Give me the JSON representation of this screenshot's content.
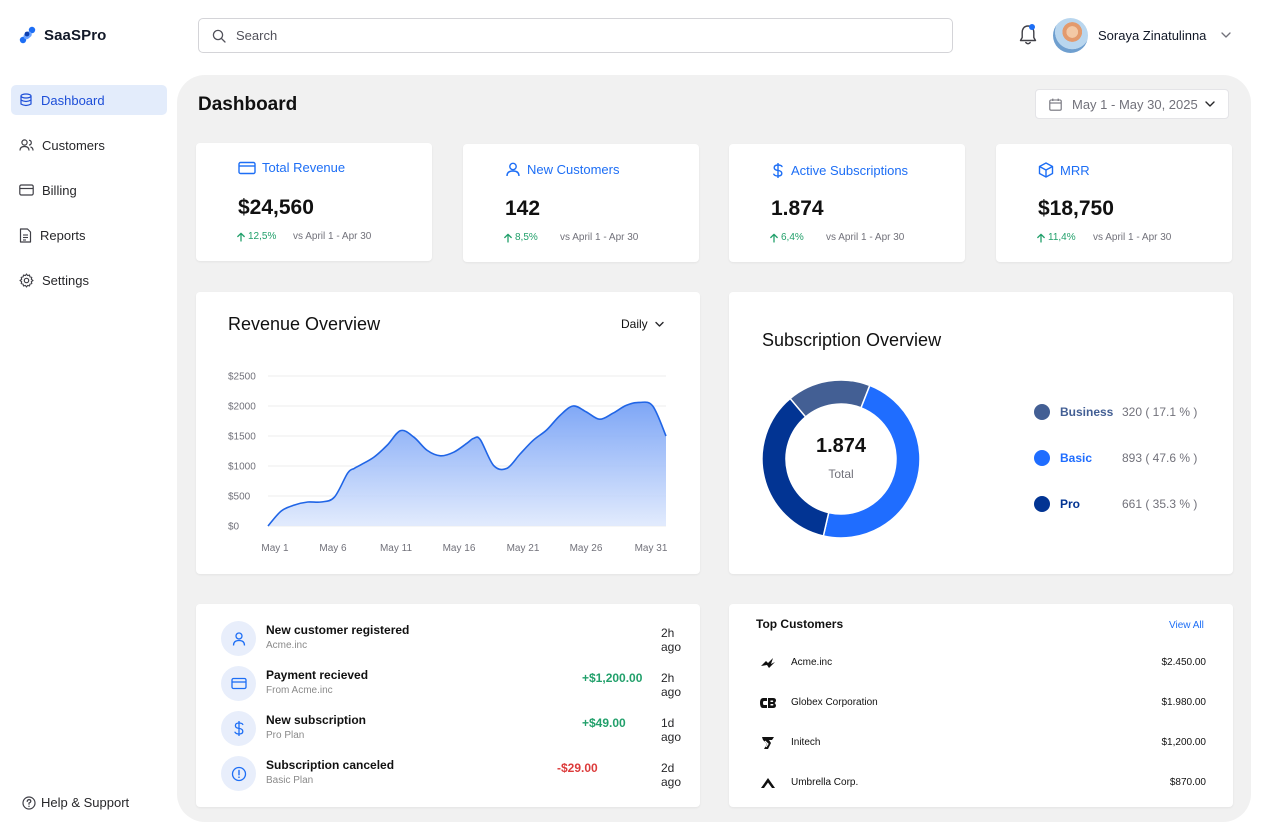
{
  "app": {
    "name": "SaaSPro"
  },
  "search": {
    "placeholder": "Search"
  },
  "user": {
    "name": "Soraya Zinatulinna"
  },
  "sidebar": {
    "items": [
      {
        "label": "Dashboard",
        "icon": "database-icon",
        "active": true
      },
      {
        "label": "Customers",
        "icon": "users-icon",
        "active": false
      },
      {
        "label": "Billing",
        "icon": "credit-card-icon",
        "active": false
      },
      {
        "label": "Reports",
        "icon": "document-icon",
        "active": false
      },
      {
        "label": "Settings",
        "icon": "gear-icon",
        "active": false
      }
    ],
    "help_label": "Help & Support"
  },
  "header": {
    "title": "Dashboard",
    "date_range": "May 1 - May 30, 2025"
  },
  "stats": [
    {
      "label": "Total Revenue",
      "value": "$24,560",
      "change": "12,5%",
      "compare": "vs April 1 - Apr 30",
      "icon": "credit-card-icon"
    },
    {
      "label": "New Customers",
      "value": "142",
      "change": "8,5%",
      "compare": "vs April 1 - Apr 30",
      "icon": "user-icon"
    },
    {
      "label": "Active Subscriptions",
      "value": "1.874",
      "change": "6,4%",
      "compare": "vs April 1 - Apr 30",
      "icon": "dollar-icon"
    },
    {
      "label": "MRR",
      "value": "$18,750",
      "change": "11,4%",
      "compare": "vs April 1 - Apr 30",
      "icon": "box-icon"
    }
  ],
  "revenue": {
    "title": "Revenue Overview",
    "interval": "Daily"
  },
  "subscription": {
    "title": "Subscription Overview",
    "total_value": "1.874",
    "total_label": "Total",
    "legend": [
      {
        "name": "Business",
        "value": "320 ( 17.1 % )",
        "color": "#435f94"
      },
      {
        "name": "Basic",
        "value": "893 ( 47.6 % )",
        "color": "#1f6dff"
      },
      {
        "name": "Pro",
        "value": "661 ( 35.3 % )",
        "color": "#023493"
      }
    ]
  },
  "chart_data": [
    {
      "type": "area",
      "title": "Revenue Overview",
      "x_ticks": [
        "May 1",
        "May 6",
        "May 11",
        "May 16",
        "May 21",
        "May 26",
        "May 31"
      ],
      "y_ticks": [
        "$0",
        "$500",
        "$1000",
        "$1500",
        "$2000",
        "$2500"
      ],
      "ylim": [
        0,
        2500
      ],
      "grid": true,
      "series": [
        {
          "x": [
            1,
            2,
            3,
            4,
            5,
            6,
            7,
            7.5,
            8,
            9,
            10,
            11,
            12,
            13,
            14,
            15,
            16,
            16.5,
            17,
            18,
            19,
            20,
            21,
            22,
            23,
            24,
            25,
            26,
            27,
            28,
            29,
            30,
            31
          ],
          "values": [
            0,
            250,
            350,
            400,
            400,
            480,
            880,
            960,
            1020,
            1150,
            1350,
            1590,
            1480,
            1260,
            1170,
            1230,
            1380,
            1460,
            1440,
            1010,
            960,
            1200,
            1430,
            1600,
            1840,
            2000,
            1900,
            1780,
            1880,
            2010,
            2060,
            2000,
            1500
          ]
        }
      ]
    },
    {
      "type": "pie",
      "title": "Subscription Overview",
      "categories": [
        "Business",
        "Basic",
        "Pro"
      ],
      "values": [
        320,
        893,
        661
      ],
      "colors": [
        "#435f94",
        "#1f6dff",
        "#023493"
      ]
    }
  ],
  "activity": [
    {
      "title": "New customer registered",
      "subtitle": "Acme.inc",
      "amount": "",
      "amount_color": "",
      "time": "2h ago",
      "icon": "user-icon"
    },
    {
      "title": "Payment recieved",
      "subtitle": "From Acme.inc",
      "amount": "+$1,200.00",
      "amount_color": "#22a06b",
      "time": "2h ago",
      "icon": "credit-card-icon"
    },
    {
      "title": "New subscription",
      "subtitle": "Pro Plan",
      "amount": "+$49.00",
      "amount_color": "#22a06b",
      "time": "1d ago",
      "icon": "dollar-icon"
    },
    {
      "title": "Subscription canceled",
      "subtitle": "Basic Plan",
      "amount": "-$29.00",
      "amount_color": "#dc3b3b",
      "time": "2d ago",
      "icon": "alert-icon"
    }
  ],
  "top_customers": {
    "title": "Top Customers",
    "view_all": "View All",
    "rows": [
      {
        "name": "Acme.inc",
        "amount": "$2.450.00",
        "icon": "acme-logo-icon"
      },
      {
        "name": "Globex Corporation",
        "amount": "$1.980.00",
        "icon": "globex-logo-icon"
      },
      {
        "name": "Initech",
        "amount": "$1,200.00",
        "icon": "initech-logo-icon"
      },
      {
        "name": "Umbrella Corp.",
        "amount": "$870.00",
        "icon": "umbrella-logo-icon"
      }
    ]
  }
}
